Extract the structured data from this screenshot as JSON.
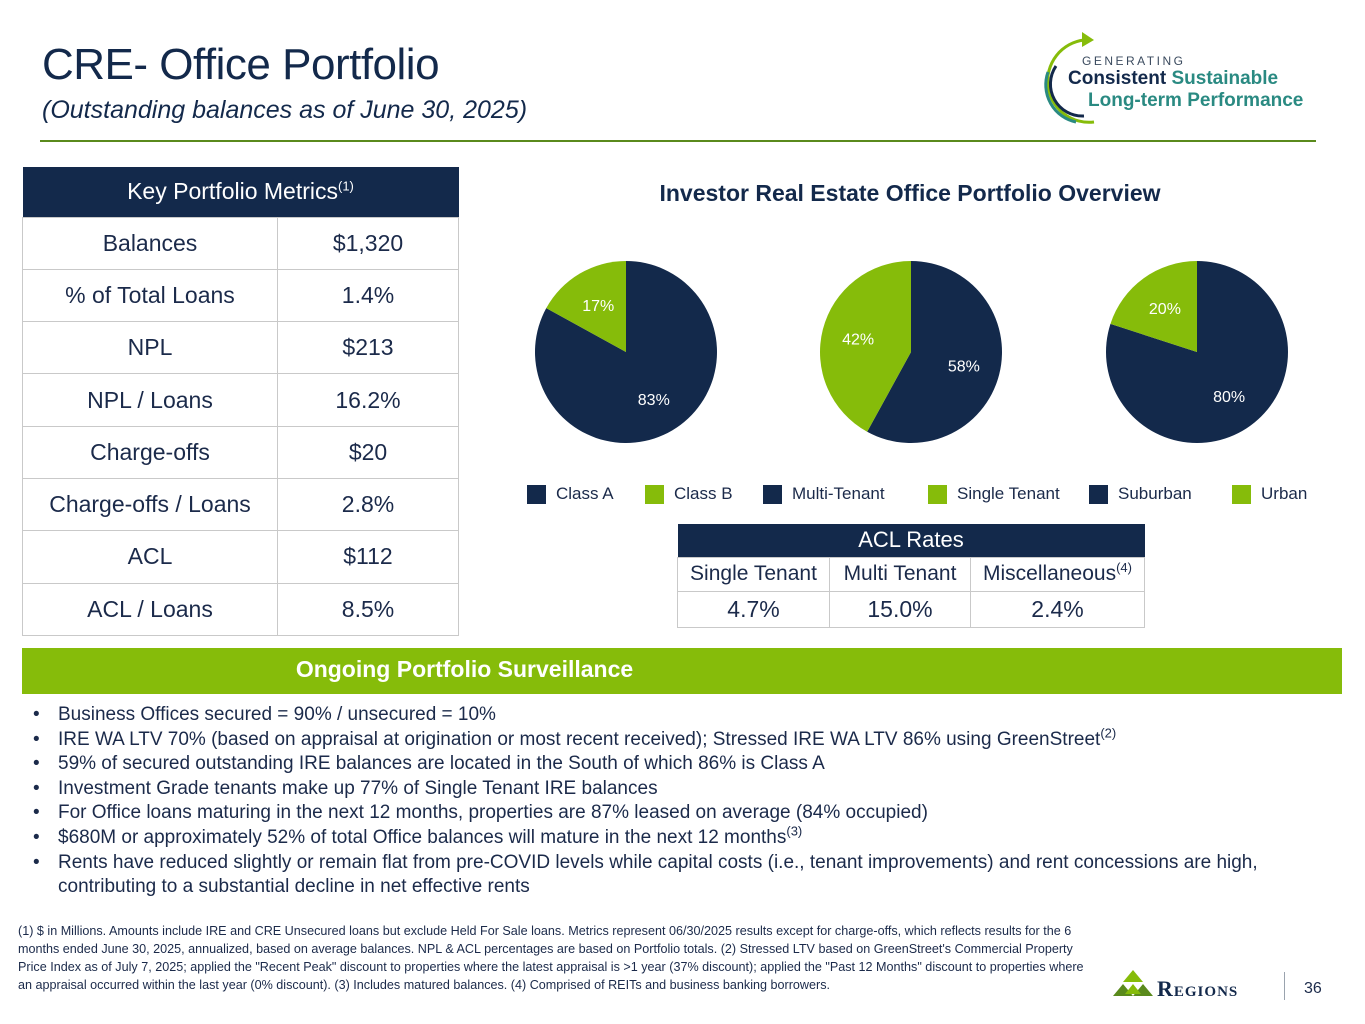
{
  "header": {
    "title": "CRE- Office Portfolio",
    "subtitle": "(Outstanding balances as of June 30, 2025)"
  },
  "brand": {
    "generating": "GENERATING",
    "consistent": "Consistent",
    "sustainable": "Sustainable",
    "line2": "Long-term Performance"
  },
  "metrics": {
    "title": "Key Portfolio Metrics",
    "title_note": "(1)",
    "rows": [
      {
        "label": "Balances",
        "value": "$1,320"
      },
      {
        "label": "% of Total Loans",
        "value": "1.4%"
      },
      {
        "label": "NPL",
        "value": "$213"
      },
      {
        "label": "NPL / Loans",
        "value": "16.2%"
      },
      {
        "label": "Charge-offs",
        "value": "$20"
      },
      {
        "label": "Charge-offs / Loans",
        "value": "2.8%"
      },
      {
        "label": "ACL",
        "value": "$112"
      },
      {
        "label": "ACL / Loans",
        "value": "8.5%"
      }
    ]
  },
  "overview": {
    "title": "Investor Real Estate Office Portfolio Overview"
  },
  "chart_data": [
    {
      "type": "pie",
      "categories": [
        "Class A",
        "Class B"
      ],
      "values": [
        83,
        17
      ],
      "labels": [
        "83%",
        "17%"
      ],
      "colors": [
        "#13294b",
        "#86bc0a"
      ]
    },
    {
      "type": "pie",
      "categories": [
        "Multi-Tenant",
        "Single Tenant"
      ],
      "values": [
        58,
        42
      ],
      "labels": [
        "58%",
        "42%"
      ],
      "colors": [
        "#13294b",
        "#86bc0a"
      ]
    },
    {
      "type": "pie",
      "categories": [
        "Suburban",
        "Urban"
      ],
      "values": [
        80,
        20
      ],
      "labels": [
        "80%",
        "20%"
      ],
      "colors": [
        "#13294b",
        "#86bc0a"
      ]
    }
  ],
  "legend": {
    "class_a": "Class A",
    "class_b": "Class B",
    "multi_tenant": "Multi-Tenant",
    "single_tenant": "Single Tenant",
    "suburban": "Suburban",
    "urban": "Urban"
  },
  "acl": {
    "title": "ACL Rates",
    "headers": [
      "Single Tenant",
      "Multi Tenant",
      "Miscellaneous"
    ],
    "misc_note": "(4)",
    "values": [
      "4.7%",
      "15.0%",
      "2.4%"
    ]
  },
  "surveillance": {
    "title": "Ongoing Portfolio Surveillance",
    "bullets": [
      {
        "text": "Business Offices secured = 90% / unsecured = 10%",
        "note": ""
      },
      {
        "text": "IRE WA LTV 70% (based on appraisal at origination or most recent received); Stressed IRE WA LTV 86% using GreenStreet",
        "note": "(2)"
      },
      {
        "text": "59% of secured outstanding IRE balances are located in the South of which 86% is Class A",
        "note": ""
      },
      {
        "text": "Investment Grade tenants make up 77% of Single Tenant IRE balances",
        "note": ""
      },
      {
        "text": "For Office loans maturing in the next 12 months, properties are 87% leased on average (84% occupied)",
        "note": ""
      },
      {
        "text": "$680M or approximately 52% of total Office balances will mature in the next 12 months",
        "note": "(3)"
      },
      {
        "text": "Rents have reduced slightly or remain flat from pre-COVID levels while capital costs (i.e., tenant improvements) and rent concessions are high, contributing to a substantial decline in net effective rents",
        "note": ""
      }
    ]
  },
  "footnote": "(1) $ in Millions. Amounts include IRE and CRE Unsecured loans but exclude Held For Sale loans. Metrics represent 06/30/2025 results except for charge-offs, which reflects results for the 6 months ended June 30, 2025, annualized,  based on average balances.  NPL & ACL percentages are based on Portfolio totals.  (2) Stressed LTV based on GreenStreet's Commercial Property Price Index as of July 7, 2025; applied the \"Recent Peak\" discount to properties where the latest appraisal is >1 year (37% discount); applied the \"Past 12 Months\" discount to properties where an appraisal occurred within the last year (0% discount). (3) Includes matured balances. (4) Comprised of REITs and business banking borrowers.",
  "logo": {
    "name": "Regions"
  },
  "page_number": "36",
  "colors": {
    "navy": "#13294b",
    "green": "#86bc0a",
    "teal": "#2a8a82"
  }
}
